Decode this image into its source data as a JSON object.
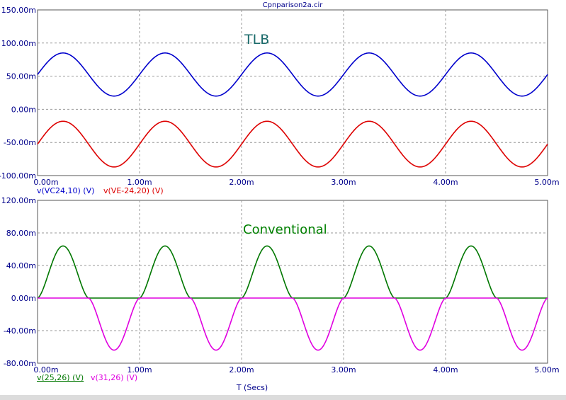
{
  "title": "Cpnparison2a.cir",
  "x_axis_label": "T (Secs)",
  "colors": {
    "blue": "#0000cc",
    "red": "#dd0000",
    "green": "#007700",
    "magenta": "#e000e0",
    "tlb_annotation": "#1a6a6a",
    "conventional_annotation": "#008000",
    "tick_text": "#00008b",
    "grid": "#9a9a9a"
  },
  "chart_data": [
    {
      "type": "line",
      "annotation": "TLB",
      "xlim": [
        0,
        5.0
      ],
      "ylim": [
        -100,
        150
      ],
      "x_ticks": [
        "0.00m",
        "1.00m",
        "2.00m",
        "3.00m",
        "4.00m",
        "5.00m"
      ],
      "y_ticks": [
        "150.00m",
        "100.00m",
        "50.00m",
        "0.00m",
        "-50.00m",
        "-100.00m"
      ],
      "grid": true,
      "legend_position": "below-left",
      "series": [
        {
          "name": "v(VC24,10) (V)",
          "color": "blue",
          "shape": "sine",
          "x": [
            0,
            0.25,
            0.75,
            1.25,
            1.75,
            2.25,
            2.75,
            3.25,
            3.75,
            4.25,
            4.75,
            5.0
          ],
          "y": [
            42,
            85,
            20,
            85,
            20,
            85,
            20,
            85,
            20,
            85,
            20,
            42
          ]
        },
        {
          "name": "v(VE-24,20) (V)",
          "color": "red",
          "shape": "sine",
          "x": [
            0,
            0.25,
            0.75,
            1.25,
            1.75,
            2.25,
            2.75,
            3.25,
            3.75,
            4.25,
            4.75,
            5.0
          ],
          "y": [
            -42,
            -18,
            -87,
            -18,
            -87,
            -18,
            -87,
            -18,
            -87,
            -18,
            -87,
            -42
          ]
        }
      ]
    },
    {
      "type": "line",
      "annotation": "Conventional",
      "xlim": [
        0,
        5.0
      ],
      "ylim": [
        -80,
        120
      ],
      "x_ticks": [
        "0.00m",
        "1.00m",
        "2.00m",
        "3.00m",
        "4.00m",
        "5.00m"
      ],
      "y_ticks": [
        "120.00m",
        "80.00m",
        "40.00m",
        "0.00m",
        "-40.00m",
        "-80.00m"
      ],
      "grid": true,
      "legend_position": "below-left",
      "series": [
        {
          "name": "v(25,26) (V)",
          "color": "green",
          "shape": "positive-half-sine",
          "x": [
            0,
            0.25,
            0.5,
            1.0,
            1.25,
            1.5,
            2.0,
            2.25,
            2.5,
            3.0,
            3.25,
            3.5,
            4.0,
            4.25,
            4.5,
            5.0
          ],
          "y": [
            5,
            64,
            0,
            0,
            64,
            0,
            0,
            64,
            0,
            0,
            64,
            0,
            0,
            64,
            0,
            5
          ]
        },
        {
          "name": "v(31,26) (V)",
          "color": "magenta",
          "shape": "negative-half-sine",
          "x": [
            0,
            0.5,
            0.75,
            1.0,
            1.5,
            1.75,
            2.0,
            2.5,
            2.75,
            3.0,
            3.5,
            3.75,
            4.0,
            4.5,
            4.75,
            5.0
          ],
          "y": [
            0,
            0,
            -64,
            0,
            0,
            -64,
            0,
            0,
            -64,
            0,
            0,
            -64,
            0,
            0,
            -64,
            -5
          ]
        }
      ]
    }
  ]
}
